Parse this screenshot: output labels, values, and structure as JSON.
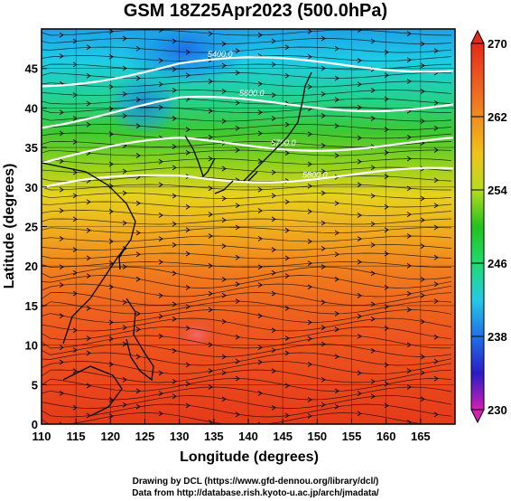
{
  "title": "GSM 18Z25Apr2023 (500.0hPa)",
  "x_axis": {
    "label": "Longitude (degrees)",
    "range": [
      110,
      170
    ],
    "ticks": [
      "110",
      "115",
      "120",
      "125",
      "130",
      "135",
      "140",
      "145",
      "150",
      "155",
      "160",
      "165"
    ]
  },
  "y_axis": {
    "label": "Latitude  (degrees)",
    "range": [
      0,
      50
    ],
    "ticks": [
      "0",
      "5",
      "10",
      "15",
      "20",
      "25",
      "30",
      "35",
      "40",
      "45"
    ]
  },
  "colorbar": {
    "min": 230,
    "max": 270,
    "ticks": [
      "230",
      "238",
      "246",
      "254",
      "262",
      "270"
    ],
    "colors": [
      "#d21fb4",
      "#2a1bc8",
      "#1f72e6",
      "#25c8e6",
      "#1fdc6e",
      "#23c21e",
      "#b6dc1e",
      "#f0c21a",
      "#f08c1e",
      "#ee5a1e",
      "#e62a1a"
    ]
  },
  "contours": [
    {
      "label": "5400.0",
      "lat": 45.5
    },
    {
      "label": "5600.0",
      "lat": 40.5
    },
    {
      "label": "5700.0",
      "lat": 35.5
    },
    {
      "label": "5800.0",
      "lat": 31.5
    }
  ],
  "credits": {
    "line1": "Drawing by DCL (https://www.gfd-dennou.org/library/dcl/)",
    "line2": "Data from http://database.rish.kyoto-u.ac.jp/arch/jmadata/"
  }
}
